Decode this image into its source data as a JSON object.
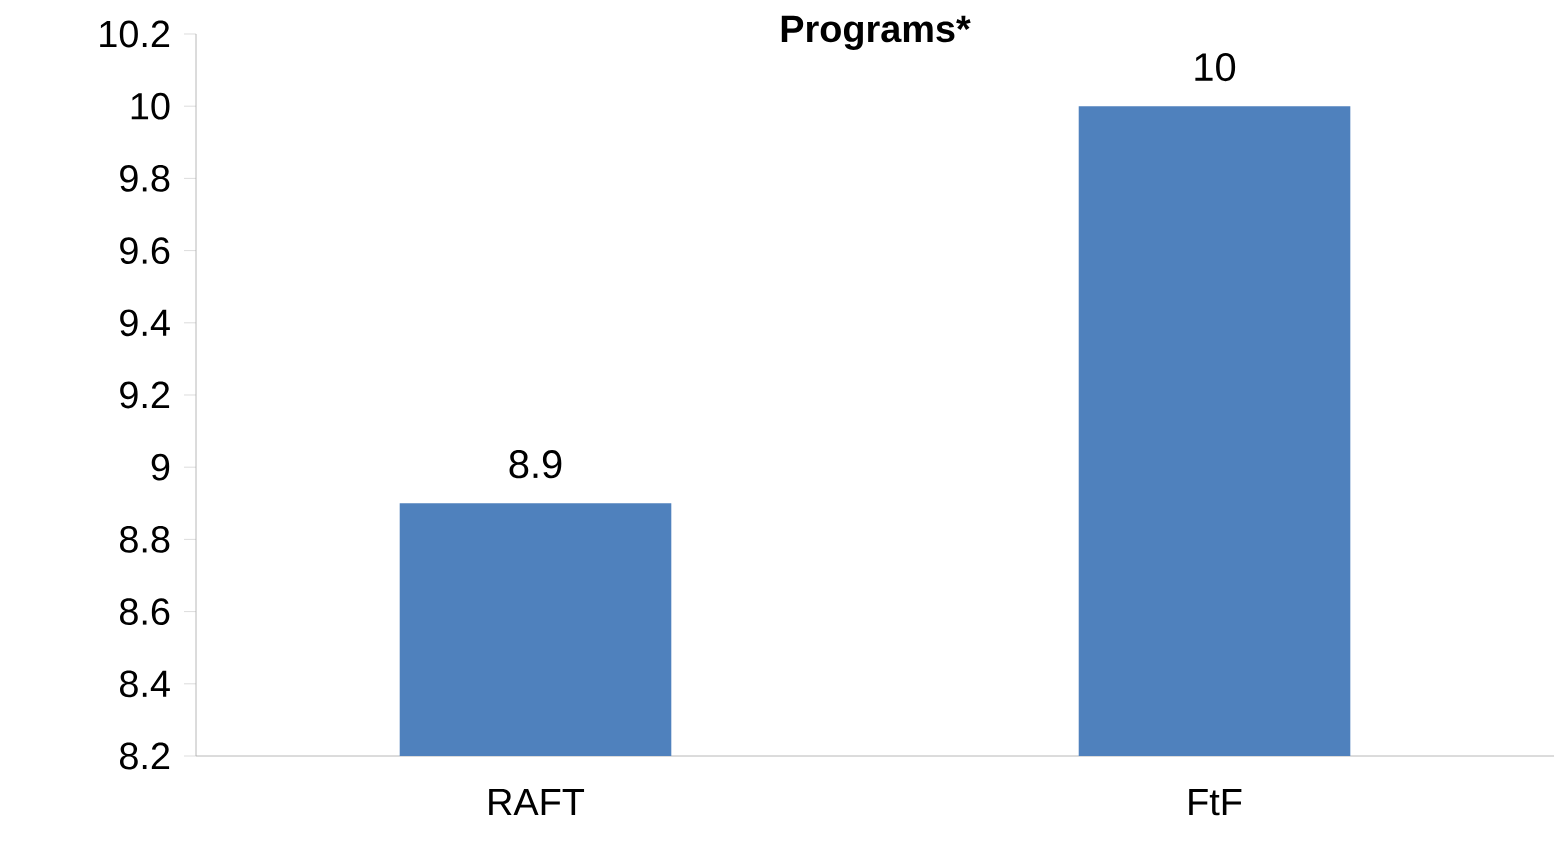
{
  "chart_data": {
    "type": "bar",
    "title": "Programs*",
    "categories": [
      "RAFT",
      "FtF"
    ],
    "values": [
      8.9,
      10
    ],
    "color": "#4f81bd",
    "data_labels": true,
    "ylim": [
      8.2,
      10.2
    ],
    "yticks": [
      8.2,
      8.4,
      8.6,
      8.8,
      9,
      9.2,
      9.4,
      9.6,
      9.8,
      10,
      10.2
    ]
  }
}
